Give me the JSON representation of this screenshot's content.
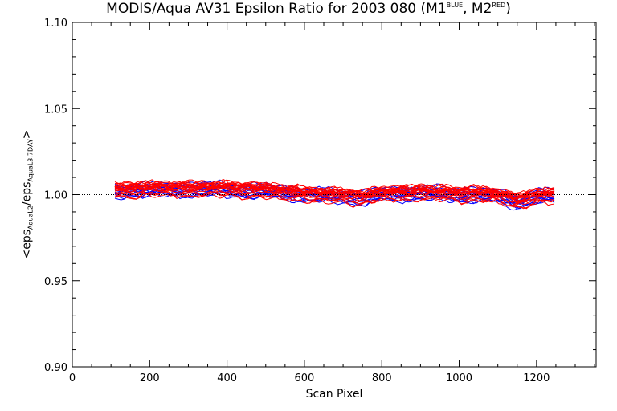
{
  "chart_data": {
    "type": "line",
    "title": {
      "main": "MODIS/Aqua AV31 Epsilon Ratio for 2003 080 (M1",
      "sup1": "BLUE",
      "mid": ", M2",
      "sup2": "RED",
      "end": ")"
    },
    "xlabel": "Scan Pixel",
    "ylabel": {
      "p1": "<eps",
      "s1": "AquaL2",
      "p2": "/eps",
      "s2": "AquaL3,7DAY",
      "p3": ">"
    },
    "xlim": [
      0,
      1354
    ],
    "ylim": [
      0.9,
      1.1
    ],
    "x_ticks": [
      0,
      200,
      400,
      600,
      800,
      1000,
      1200
    ],
    "x_tick_labels": [
      "0",
      "200",
      "400",
      "600",
      "800",
      "1000",
      "1200"
    ],
    "y_ticks": [
      0.9,
      0.95,
      1.0,
      1.05,
      1.1
    ],
    "y_tick_labels": [
      "0.90",
      "0.95",
      "1.00",
      "1.05",
      "1.10"
    ],
    "reference_line": 1.0,
    "x_range": [
      110,
      1250
    ],
    "trend": {
      "x": [
        110,
        200,
        300,
        400,
        500,
        600,
        700,
        750,
        800,
        900,
        1000,
        1050,
        1100,
        1150,
        1200,
        1250
      ],
      "y": [
        1.002,
        1.003,
        1.003,
        1.003,
        1.002,
        1.0,
        0.999,
        0.998,
        1.0,
        1.001,
        1.0,
        1.0,
        0.999,
        0.996,
        0.999,
        0.999
      ]
    },
    "series": [
      {
        "name": "M1",
        "color": "#0000ff",
        "line_count": 14
      },
      {
        "name": "M2",
        "color": "#ff0000",
        "line_count": 22
      }
    ]
  }
}
